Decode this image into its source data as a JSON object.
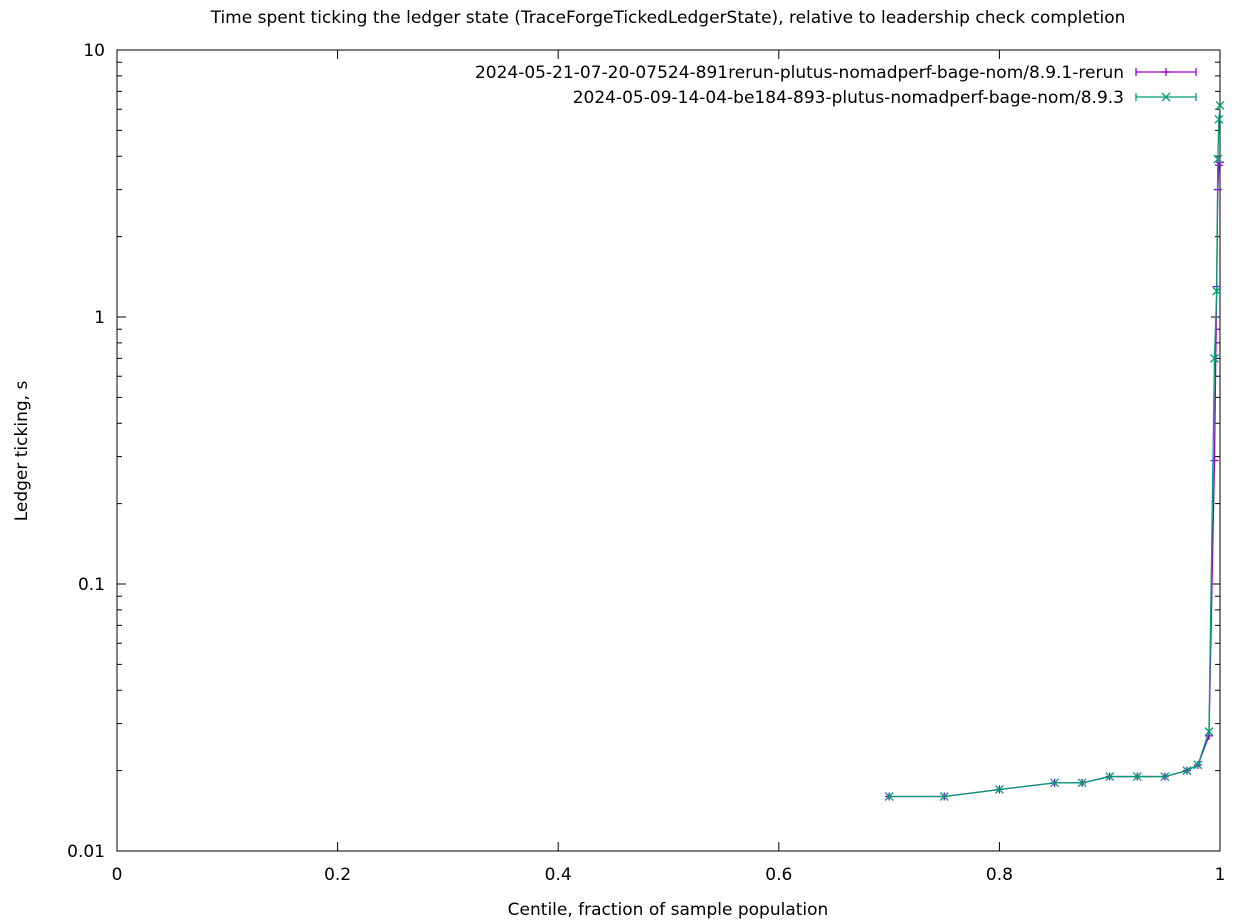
{
  "chart_data": {
    "type": "line",
    "title": "Time spent ticking the ledger state (TraceForgeTickedLedgerState), relative to leadership check completion",
    "xlabel": "Centile, fraction of sample population",
    "ylabel": "Ledger ticking, s",
    "xlim": [
      0,
      1
    ],
    "ylim": [
      0.01,
      10
    ],
    "yscale": "log",
    "x_ticks": [
      0,
      0.2,
      0.4,
      0.6,
      0.8,
      1
    ],
    "x_tick_labels": [
      "0",
      "0.2",
      "0.4",
      "0.6",
      "0.8",
      "1"
    ],
    "y_ticks": [
      0.01,
      0.1,
      1,
      10
    ],
    "y_tick_labels": [
      "0.01",
      "0.1",
      "1",
      "10"
    ],
    "grid": false,
    "legend_position": "top-right",
    "series": [
      {
        "name": "2024-05-21-07-20-07524-891rerun-plutus-nomadperf-bage-nom/8.9.1-rerun",
        "color": "#9400d3",
        "marker": "plus",
        "x": [
          0.7,
          0.75,
          0.8,
          0.85,
          0.875,
          0.9,
          0.925,
          0.95,
          0.97,
          0.98,
          0.99,
          0.995,
          0.997,
          0.998,
          0.999,
          1.0
        ],
        "y": [
          0.016,
          0.016,
          0.017,
          0.018,
          0.018,
          0.019,
          0.019,
          0.019,
          0.02,
          0.021,
          0.027,
          0.29,
          1.3,
          3.0,
          3.7,
          3.8
        ]
      },
      {
        "name": "2024-05-09-14-04-be184-893-plutus-nomadperf-bage-nom/8.9.3",
        "color": "#009e73",
        "marker": "cross",
        "x": [
          0.7,
          0.75,
          0.8,
          0.85,
          0.875,
          0.9,
          0.925,
          0.95,
          0.97,
          0.98,
          0.99,
          0.995,
          0.997,
          0.998,
          0.999,
          1.0
        ],
        "y": [
          0.016,
          0.016,
          0.017,
          0.018,
          0.018,
          0.019,
          0.019,
          0.019,
          0.02,
          0.021,
          0.028,
          0.7,
          1.25,
          3.9,
          5.5,
          6.2
        ]
      }
    ]
  }
}
